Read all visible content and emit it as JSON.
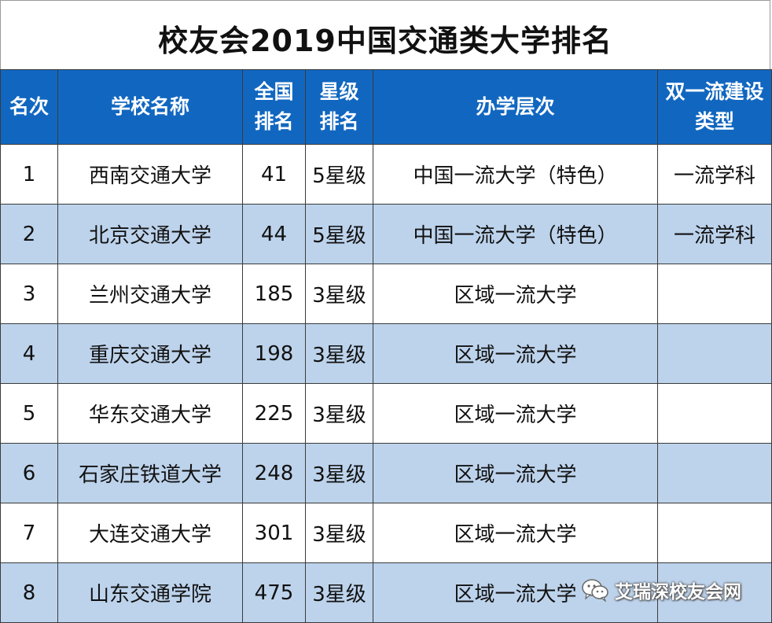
{
  "title": "校友会2019中国交通类大学排名",
  "headers": {
    "rank": "名次",
    "name": "学校名称",
    "national": "全国排名",
    "star": "星级排名",
    "level": "办学层次",
    "dfc": "双一流建设类型"
  },
  "rows": [
    {
      "rank": "1",
      "name": "西南交通大学",
      "national": "41",
      "star": "5星级",
      "level": "中国一流大学（特色）",
      "dfc": "一流学科"
    },
    {
      "rank": "2",
      "name": "北京交通大学",
      "national": "44",
      "star": "5星级",
      "level": "中国一流大学（特色）",
      "dfc": "一流学科"
    },
    {
      "rank": "3",
      "name": "兰州交通大学",
      "national": "185",
      "star": "3星级",
      "level": "区域一流大学",
      "dfc": ""
    },
    {
      "rank": "4",
      "name": "重庆交通大学",
      "national": "198",
      "star": "3星级",
      "level": "区域一流大学",
      "dfc": ""
    },
    {
      "rank": "5",
      "name": "华东交通大学",
      "national": "225",
      "star": "3星级",
      "level": "区域一流大学",
      "dfc": ""
    },
    {
      "rank": "6",
      "name": "石家庄铁道大学",
      "national": "248",
      "star": "3星级",
      "level": "区域一流大学",
      "dfc": ""
    },
    {
      "rank": "7",
      "name": "大连交通大学",
      "national": "301",
      "star": "3星级",
      "level": "区域一流大学",
      "dfc": ""
    },
    {
      "rank": "8",
      "name": "山东交通学院",
      "national": "475",
      "star": "3星级",
      "level": "区域一流大学",
      "dfc": ""
    }
  ],
  "watermark": {
    "text": "艾瑞深校友会网",
    "icon": "wechat-icon"
  },
  "colors": {
    "header": "#1167c0",
    "stripe": "#bdd3ec"
  }
}
